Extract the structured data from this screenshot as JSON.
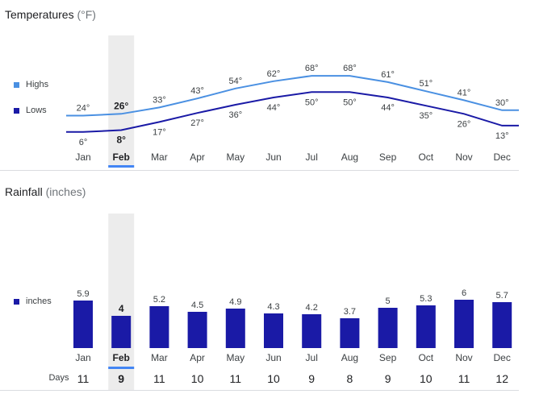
{
  "temperature": {
    "title": "Temperatures",
    "unit": "(°F)",
    "legend_highs": "Highs",
    "legend_lows": "Lows"
  },
  "rainfall": {
    "title": "Rainfall",
    "unit": "(inches)",
    "legend_inches": "inches",
    "days_label": "Days"
  },
  "selected_month": "Feb",
  "colors": {
    "highs": "#4a90e2",
    "lows": "#1a1aa6",
    "bars": "#1a1aa6",
    "highlight": "#ececec",
    "accent": "#4285f4"
  },
  "chart_data": [
    {
      "type": "line",
      "title": "Temperatures",
      "categories": [
        "Jan",
        "Feb",
        "Mar",
        "Apr",
        "May",
        "Jun",
        "Jul",
        "Aug",
        "Sep",
        "Oct",
        "Nov",
        "Dec"
      ],
      "series": [
        {
          "name": "Highs",
          "values": [
            24,
            26,
            33,
            43,
            54,
            62,
            68,
            68,
            61,
            51,
            41,
            30
          ]
        },
        {
          "name": "Lows",
          "values": [
            6,
            8,
            17,
            27,
            36,
            44,
            50,
            50,
            44,
            35,
            26,
            13
          ]
        }
      ],
      "value_suffix": "°"
    },
    {
      "type": "bar",
      "title": "Rainfall",
      "categories": [
        "Jan",
        "Feb",
        "Mar",
        "Apr",
        "May",
        "Jun",
        "Jul",
        "Aug",
        "Sep",
        "Oct",
        "Nov",
        "Dec"
      ],
      "series": [
        {
          "name": "inches",
          "values": [
            5.9,
            4,
            5.2,
            4.5,
            4.9,
            4.3,
            4.2,
            3.7,
            5,
            5.3,
            6,
            5.7
          ]
        }
      ],
      "days": [
        11,
        9,
        11,
        10,
        11,
        10,
        9,
        8,
        9,
        10,
        11,
        12
      ]
    }
  ]
}
